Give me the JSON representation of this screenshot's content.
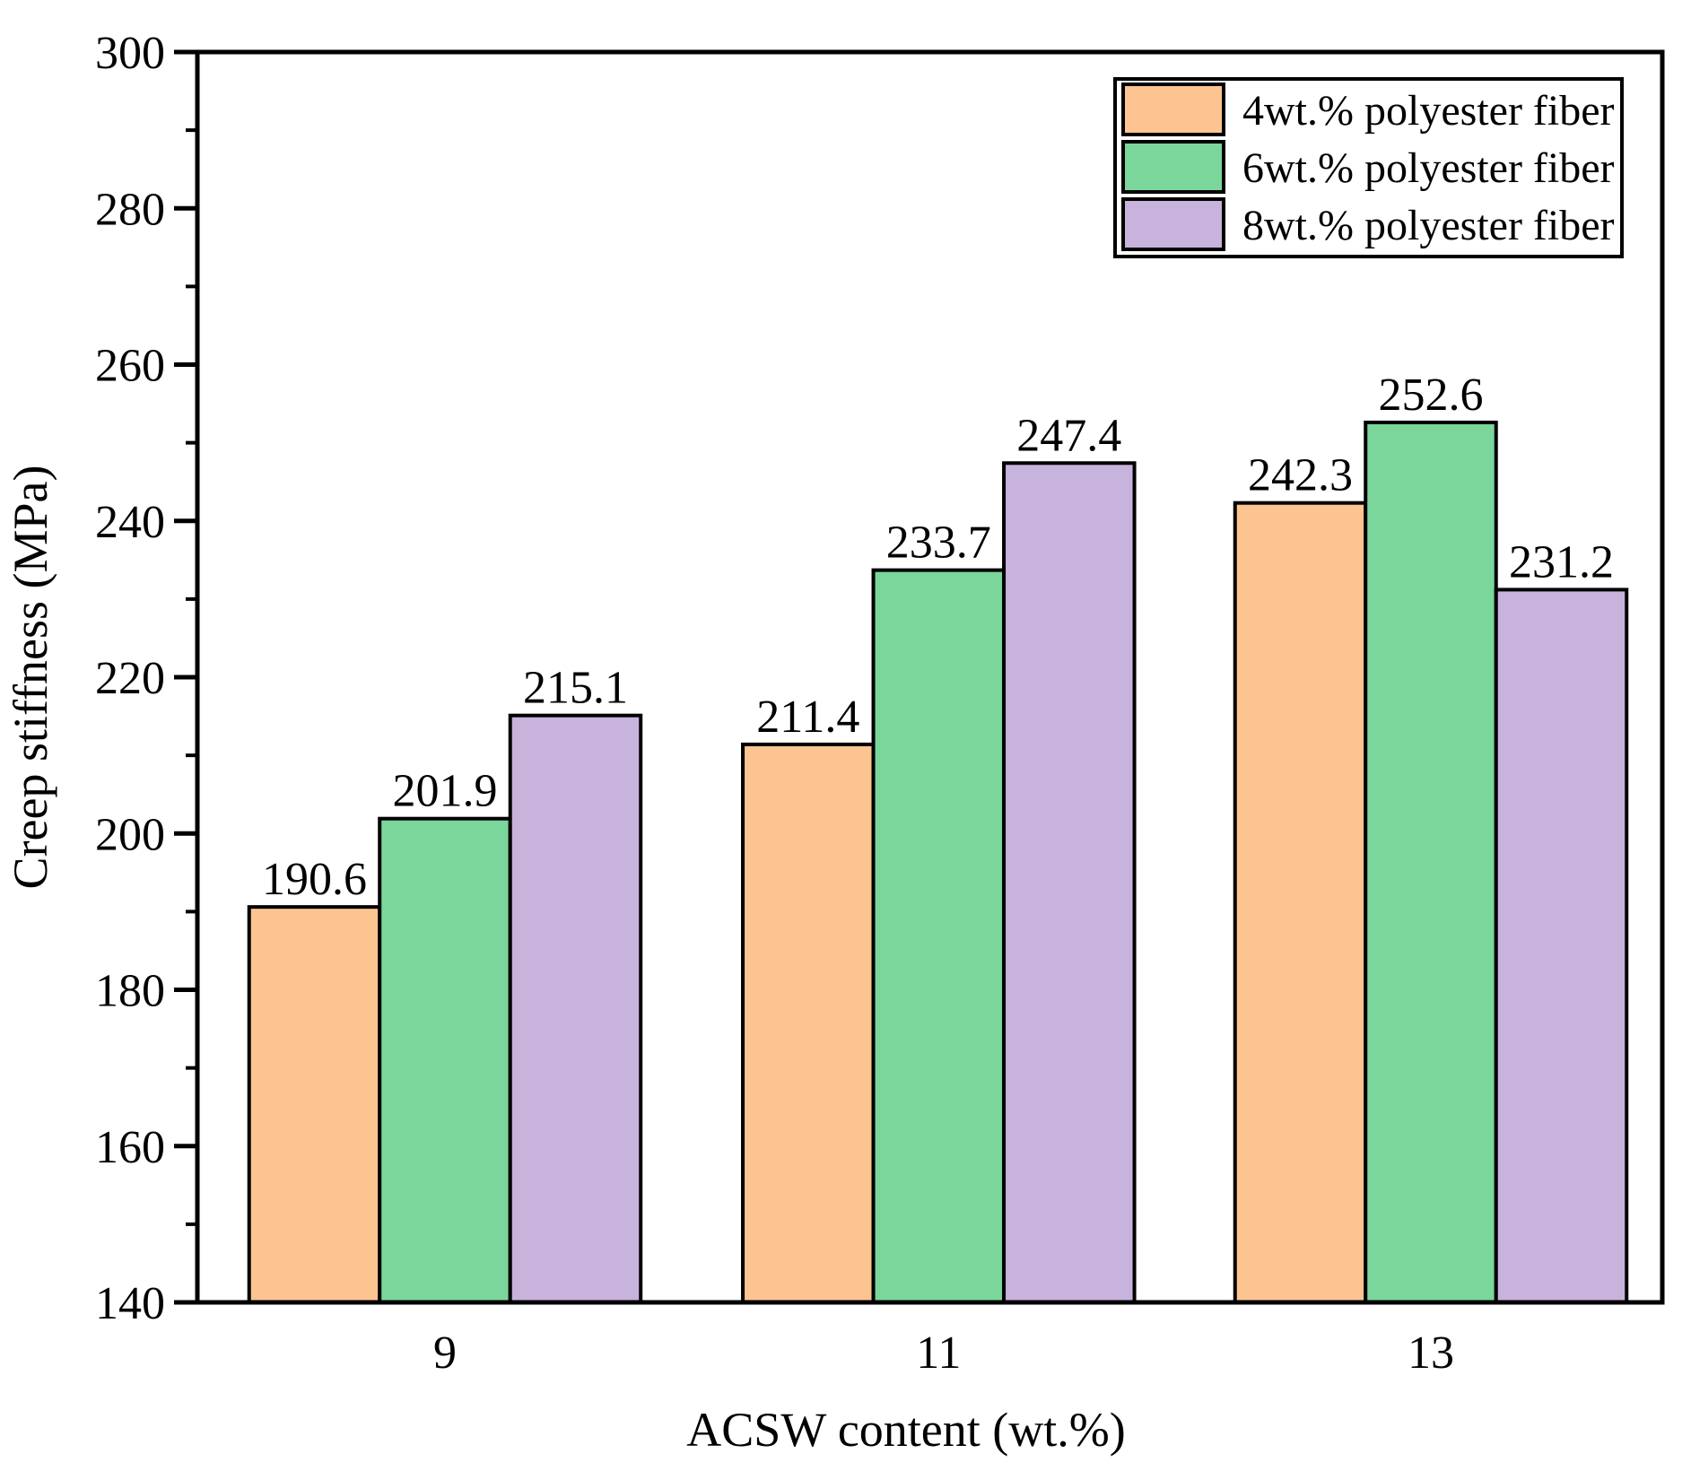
{
  "chart_data": {
    "type": "bar",
    "title": "",
    "xlabel": "ACSW content (wt.%)",
    "ylabel": "Creep stiffness (MPa)",
    "categories": [
      "9",
      "11",
      "13"
    ],
    "series": [
      {
        "name": "4wt.% polyester fiber",
        "color": "#FCC490",
        "values": [
          190.6,
          211.4,
          242.3
        ]
      },
      {
        "name": "6wt.% polyester fiber",
        "color": "#7BD69B",
        "values": [
          201.9,
          233.7,
          252.6
        ]
      },
      {
        "name": "8wt.% polyester fiber",
        "color": "#C8B3DC",
        "values": [
          215.1,
          247.4,
          231.2
        ]
      }
    ],
    "value_labels": [
      [
        "190.6",
        "201.9",
        "215.1"
      ],
      [
        "211.4",
        "233.7",
        "247.4"
      ],
      [
        "242.3",
        "252.6",
        "231.2"
      ]
    ],
    "ylim": [
      140,
      300
    ],
    "y_major_step": 20,
    "y_minor_step": 10,
    "y_major_ticks": [
      140,
      160,
      180,
      200,
      220,
      240,
      260,
      280,
      300
    ],
    "grid": false,
    "legend_position": "top-right",
    "frame_color": "#000000",
    "bar_edge_color": "#000000",
    "background_color": "#FFFFFF"
  }
}
